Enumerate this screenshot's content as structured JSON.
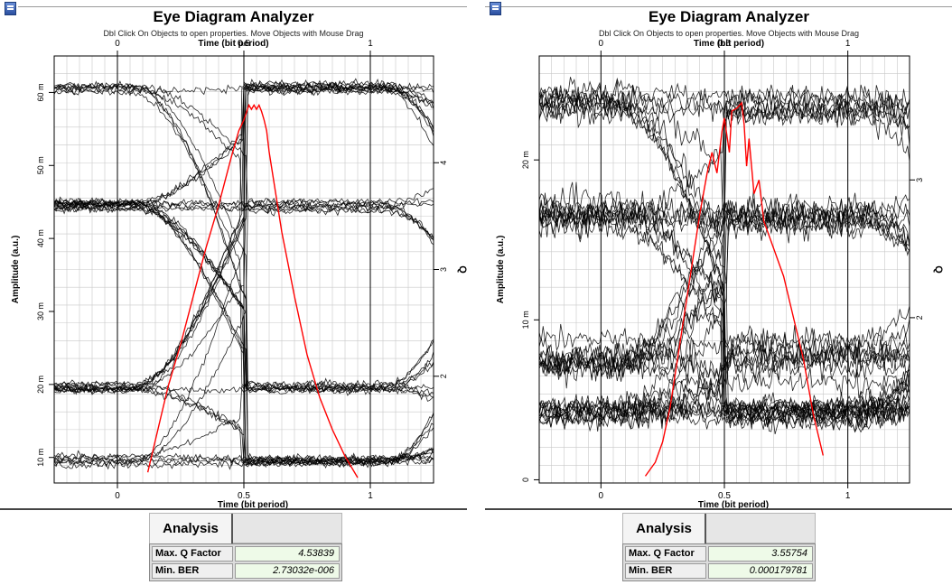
{
  "chart_data": [
    {
      "type": "line",
      "title": "Eye Diagram Analyzer",
      "subtitle": "Dbl Click On Objects to open properties.  Move Objects with Mouse Drag",
      "xlabel_top": "Time (bit period)",
      "xlabel": "Time (bit period)",
      "ylabel": "Amplitude (a.u.)",
      "y2label": "Q",
      "xlim": [
        -0.25,
        1.25
      ],
      "ylim": [
        0.0065,
        0.065
      ],
      "y2lim": [
        1.0,
        5.0
      ],
      "x_ticks": [
        0,
        0.5,
        1
      ],
      "x_tick_labels": [
        "0",
        "0.5",
        "1"
      ],
      "y_ticks": [
        0.01,
        0.02,
        0.03,
        0.04,
        0.05,
        0.06
      ],
      "y_tick_labels": [
        "10 m",
        "20 m",
        "30 m",
        "40 m",
        "50 m",
        "60 m"
      ],
      "y2_ticks": [
        2,
        3,
        4
      ],
      "y2_tick_labels": [
        "2",
        "3",
        "4"
      ],
      "grid": true,
      "eye": {
        "levels": [
          0.0095,
          0.0195,
          0.0445,
          0.0605
        ],
        "crossing_time": 0.05,
        "period": 1.0,
        "noise": [
          0.0009,
          0.0009,
          0.0009,
          0.0009
        ],
        "traces": 40
      },
      "q_curve": {
        "name": "Q",
        "color": "#ff0000",
        "x": [
          0.12,
          0.16,
          0.2,
          0.25,
          0.3,
          0.35,
          0.4,
          0.45,
          0.48,
          0.5,
          0.52,
          0.53,
          0.54,
          0.55,
          0.56,
          0.57,
          0.58,
          0.59,
          0.6,
          0.62,
          0.65,
          0.7,
          0.75,
          0.8,
          0.85,
          0.9,
          0.95
        ],
        "y": [
          1.1,
          1.5,
          1.9,
          2.3,
          2.75,
          3.2,
          3.6,
          4.05,
          4.3,
          4.4,
          4.54,
          4.5,
          4.54,
          4.5,
          4.54,
          4.48,
          4.4,
          4.3,
          4.1,
          3.8,
          3.35,
          2.75,
          2.2,
          1.8,
          1.5,
          1.25,
          1.05
        ]
      }
    },
    {
      "type": "line",
      "title": "Eye Diagram Analyzer",
      "subtitle": "Dbl Click On Objects to open properties.  Move Objects with Mouse Drag",
      "xlabel_top": "Time (bit period)",
      "xlabel": "Time (bit period)",
      "ylabel": "Amplitude (a.u.)",
      "y2label": "Q",
      "xlim": [
        -0.25,
        1.25
      ],
      "ylim": [
        -0.0002,
        0.0265
      ],
      "y2lim": [
        0.8,
        3.9
      ],
      "x_ticks": [
        0,
        0.5,
        1
      ],
      "x_tick_labels": [
        "0",
        "0.5",
        "1"
      ],
      "y_ticks": [
        0,
        0.01,
        0.02
      ],
      "y_tick_labels": [
        "0",
        "10 m",
        "20 m"
      ],
      "y2_ticks": [
        2,
        3
      ],
      "y2_tick_labels": [
        "2",
        "3"
      ],
      "grid": true,
      "eye": {
        "levels": [
          0.0042,
          0.0075,
          0.0165,
          0.0235
        ],
        "crossing_time": 0.05,
        "period": 1.0,
        "noise": [
          0.0011,
          0.0016,
          0.0016,
          0.0013
        ],
        "traces": 40
      },
      "q_curve": {
        "name": "Q",
        "color": "#ff0000",
        "x": [
          0.18,
          0.22,
          0.25,
          0.28,
          0.31,
          0.34,
          0.37,
          0.4,
          0.43,
          0.45,
          0.47,
          0.49,
          0.5,
          0.52,
          0.53,
          0.55,
          0.57,
          0.58,
          0.59,
          0.6,
          0.62,
          0.64,
          0.66,
          0.7,
          0.74,
          0.78,
          0.82,
          0.86,
          0.9
        ],
        "y": [
          0.85,
          0.95,
          1.1,
          1.35,
          1.7,
          2.05,
          2.4,
          2.75,
          3.05,
          3.2,
          3.05,
          3.35,
          3.45,
          3.2,
          3.5,
          3.52,
          3.56,
          3.4,
          3.1,
          3.3,
          2.9,
          3.0,
          2.7,
          2.5,
          2.3,
          2.0,
          1.7,
          1.3,
          1.0
        ]
      }
    }
  ],
  "analysis": [
    {
      "tab_label": "Analysis",
      "rows": [
        {
          "label": "Max. Q Factor",
          "value": "4.53839"
        },
        {
          "label": "Min. BER",
          "value": "2.73032e-006"
        }
      ]
    },
    {
      "tab_label": "Analysis",
      "rows": [
        {
          "label": "Max. Q Factor",
          "value": "3.55754"
        },
        {
          "label": "Min. BER",
          "value": "0.000179781"
        }
      ]
    }
  ]
}
